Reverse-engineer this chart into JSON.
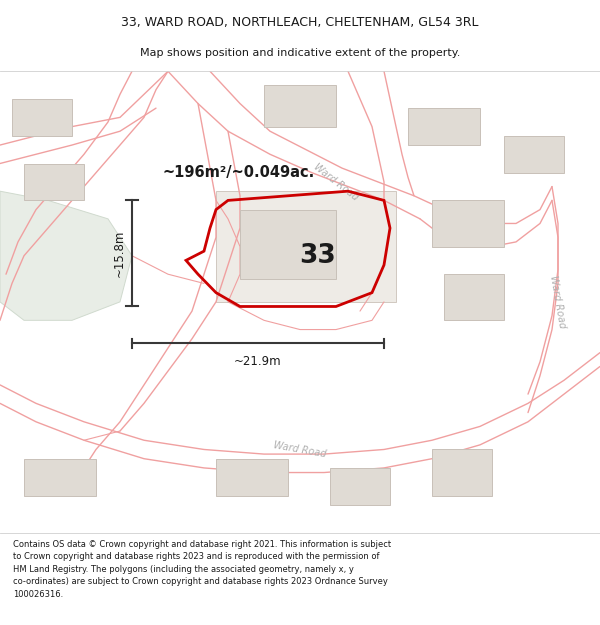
{
  "title_line1": "33, WARD ROAD, NORTHLEACH, CHELTENHAM, GL54 3RL",
  "title_line2": "Map shows position and indicative extent of the property.",
  "footer_text": "Contains OS data © Crown copyright and database right 2021. This information is subject\nto Crown copyright and database rights 2023 and is reproduced with the permission of\nHM Land Registry. The polygons (including the associated geometry, namely x, y\nco-ordinates) are subject to Crown copyright and database rights 2023 Ordnance Survey\n100026316.",
  "area_label": "~196m²/~0.049ac.",
  "number_label": "33",
  "dim_width": "~21.9m",
  "dim_height": "~15.8m",
  "map_bg": "#f8f5f0",
  "road_line_color": "#f0a0a0",
  "road_fill_color": "#f5e8e8",
  "building_fill": "#e0dbd4",
  "building_edge": "#c8c0b8",
  "green_fill": "#e8ede6",
  "green_edge": "#d0dace",
  "plot_color": "#cc0000",
  "dim_color": "#383838",
  "text_color": "#1a1a1a",
  "road_label_color": "#b0b0b0",
  "white": "#ffffff",
  "separator": "#d0d0d0",
  "title_fontsize": 9.0,
  "subtitle_fontsize": 8.0,
  "footer_fontsize": 6.0
}
